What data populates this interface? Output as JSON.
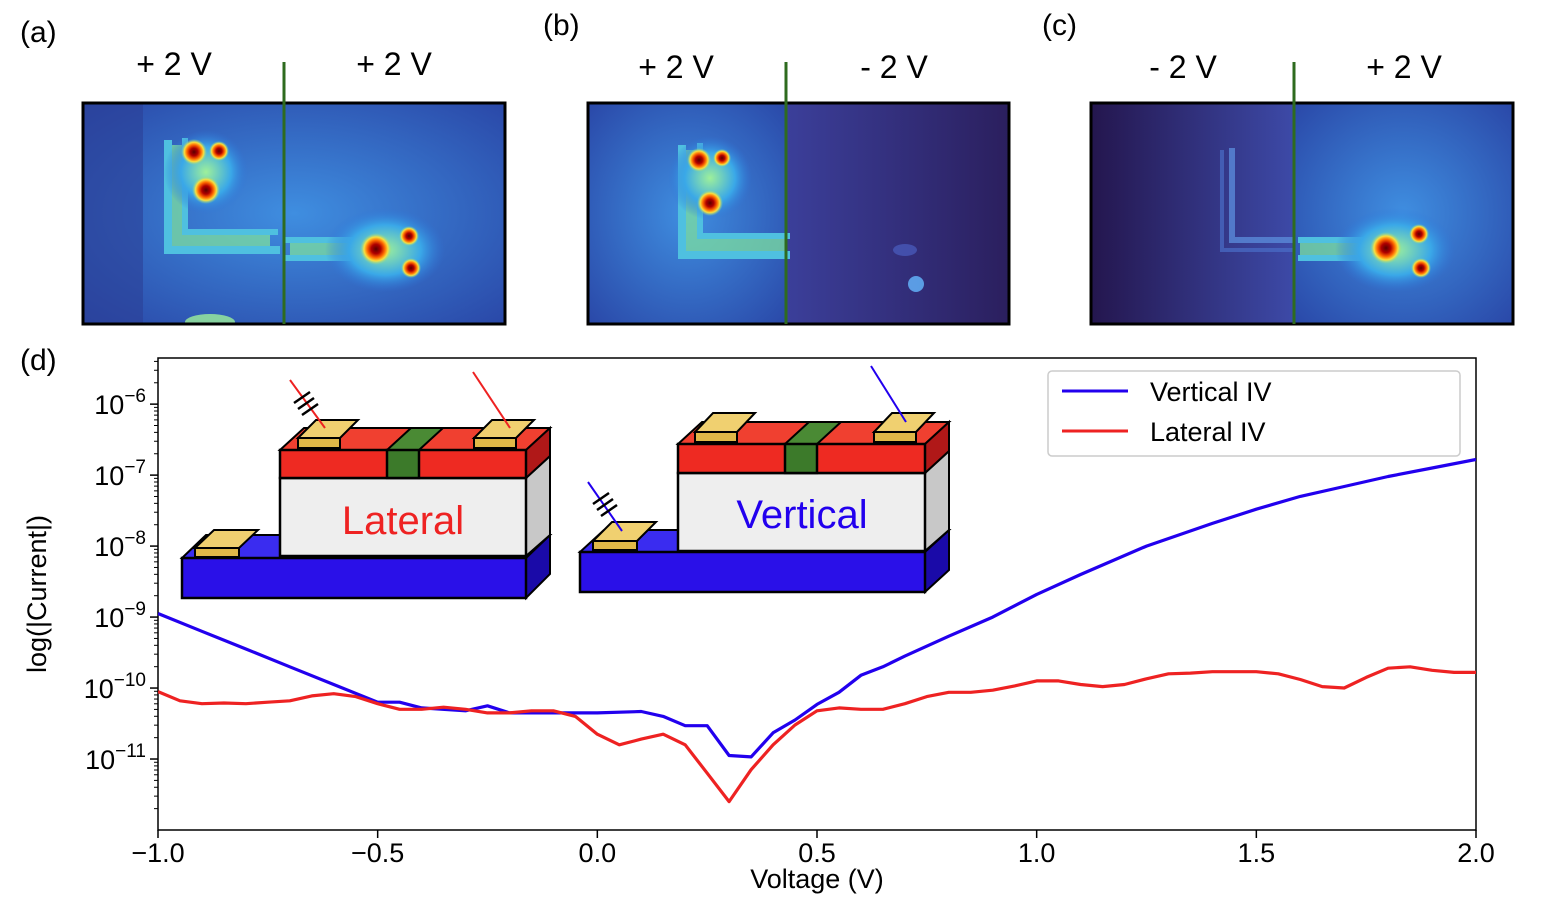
{
  "panels": {
    "a": {
      "label": "(a)",
      "left_voltage": "+ 2 V",
      "right_voltage": "+ 2 V"
    },
    "b": {
      "label": "(b)",
      "left_voltage": "+ 2 V",
      "right_voltage": "- 2 V"
    },
    "c": {
      "label": "(c)",
      "left_voltage": "- 2 V",
      "right_voltage": "+ 2 V"
    },
    "d": {
      "label": "(d)"
    }
  },
  "insets": {
    "lateral_label": "Lateral",
    "vertical_label": "Vertical"
  },
  "colors": {
    "vertical_series": "#2200ee",
    "lateral_series": "#ee2222",
    "divider": "#2e6b1f",
    "substrate": "#2a10e8",
    "top_layer": "#ee2a22",
    "gate": "#3c7a2a",
    "contact": "#e8c25a"
  },
  "chart_data": {
    "type": "line",
    "title": "",
    "xlabel": "Voltage (V)",
    "ylabel": "log(|Current|)",
    "xlim": [
      -1.0,
      2.0
    ],
    "ylim_log10": [
      -12.0,
      -5.35
    ],
    "xticks": [
      -1.0,
      -0.5,
      0.0,
      0.5,
      1.0,
      1.5,
      2.0
    ],
    "xtick_labels": [
      "−1.0",
      "−0.5",
      "0.0",
      "0.5",
      "1.0",
      "1.5",
      "2.0"
    ],
    "yticks_log10": [
      -6,
      -7,
      -8,
      -9,
      -10,
      -11
    ],
    "ytick_labels": [
      {
        "base": "10",
        "exp": "−6"
      },
      {
        "base": "10",
        "exp": "−7"
      },
      {
        "base": "10",
        "exp": "−8"
      },
      {
        "base": "10",
        "exp": "−9"
      },
      {
        "base": "10",
        "exp": "−10"
      },
      {
        "base": "10",
        "exp": "−11"
      }
    ],
    "legend_position": "top-right",
    "series": [
      {
        "name": "Vertical IV",
        "color": "#2200ee",
        "x": [
          -1.0,
          -0.9,
          -0.8,
          -0.7,
          -0.6,
          -0.5,
          -0.45,
          -0.4,
          -0.3,
          -0.25,
          -0.2,
          -0.1,
          0.0,
          0.1,
          0.15,
          0.2,
          0.25,
          0.3,
          0.35,
          0.4,
          0.45,
          0.5,
          0.55,
          0.6,
          0.65,
          0.7,
          0.8,
          0.9,
          1.0,
          1.1,
          1.25,
          1.4,
          1.5,
          1.6,
          1.7,
          1.8,
          1.9,
          2.0
        ],
        "y_log10": [
          -8.95,
          -9.2,
          -9.45,
          -9.7,
          -9.95,
          -10.2,
          -10.2,
          -10.28,
          -10.32,
          -10.25,
          -10.35,
          -10.35,
          -10.35,
          -10.33,
          -10.4,
          -10.53,
          -10.53,
          -10.95,
          -10.97,
          -10.63,
          -10.45,
          -10.23,
          -10.06,
          -9.82,
          -9.7,
          -9.55,
          -9.27,
          -9.0,
          -8.68,
          -8.4,
          -8.0,
          -7.68,
          -7.48,
          -7.3,
          -7.16,
          -7.02,
          -6.9,
          -6.78
        ]
      },
      {
        "name": "Lateral IV",
        "color": "#ee2222",
        "x": [
          -1.0,
          -0.95,
          -0.9,
          -0.85,
          -0.8,
          -0.75,
          -0.7,
          -0.65,
          -0.6,
          -0.55,
          -0.5,
          -0.45,
          -0.4,
          -0.35,
          -0.3,
          -0.25,
          -0.2,
          -0.15,
          -0.1,
          -0.05,
          0.0,
          0.05,
          0.1,
          0.15,
          0.2,
          0.25,
          0.3,
          0.35,
          0.4,
          0.45,
          0.5,
          0.55,
          0.6,
          0.65,
          0.7,
          0.75,
          0.8,
          0.85,
          0.9,
          0.95,
          1.0,
          1.05,
          1.1,
          1.15,
          1.2,
          1.25,
          1.3,
          1.35,
          1.4,
          1.45,
          1.5,
          1.55,
          1.6,
          1.65,
          1.7,
          1.75,
          1.8,
          1.85,
          1.9,
          1.95,
          2.0
        ],
        "y_log10": [
          -10.05,
          -10.18,
          -10.22,
          -10.21,
          -10.22,
          -10.2,
          -10.18,
          -10.11,
          -10.08,
          -10.12,
          -10.22,
          -10.3,
          -10.3,
          -10.27,
          -10.3,
          -10.35,
          -10.35,
          -10.32,
          -10.32,
          -10.4,
          -10.65,
          -10.8,
          -10.72,
          -10.65,
          -10.8,
          -11.2,
          -11.6,
          -11.15,
          -10.8,
          -10.52,
          -10.32,
          -10.28,
          -10.3,
          -10.3,
          -10.22,
          -10.12,
          -10.06,
          -10.06,
          -10.03,
          -9.97,
          -9.9,
          -9.9,
          -9.95,
          -9.98,
          -9.95,
          -9.87,
          -9.8,
          -9.79,
          -9.77,
          -9.77,
          -9.77,
          -9.8,
          -9.88,
          -9.98,
          -10.0,
          -9.85,
          -9.72,
          -9.7,
          -9.75,
          -9.78,
          -9.78
        ]
      }
    ]
  }
}
